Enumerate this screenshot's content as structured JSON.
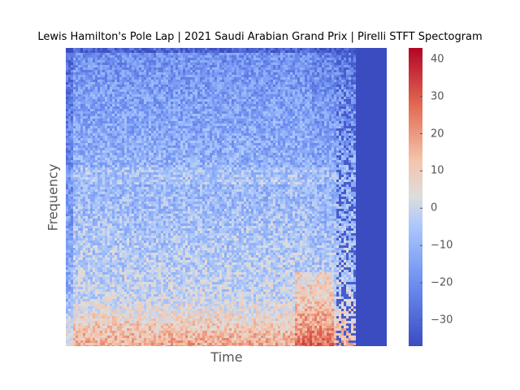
{
  "chart_data": {
    "type": "heatmap",
    "title": "Lewis Hamilton's Pole Lap | 2021 Saudi Arabian Grand Prix | Pirelli STFT Spectogram",
    "xlabel": "Time",
    "ylabel": "Frequency",
    "x_ticks_visible": false,
    "y_ticks_visible": false,
    "colormap": "coolwarm",
    "colorbar": {
      "min": -37,
      "max": 43,
      "ticks": [
        -30,
        -20,
        -10,
        0,
        10,
        20,
        30,
        40
      ],
      "tick_labels": [
        "−30",
        "−20",
        "−10",
        "0",
        "10",
        "20",
        "30",
        "40"
      ]
    },
    "colors": {
      "low": "#3b4cc0",
      "mid": "#dddddd",
      "high": "#b40426",
      "axis_text": "#555555"
    }
  }
}
